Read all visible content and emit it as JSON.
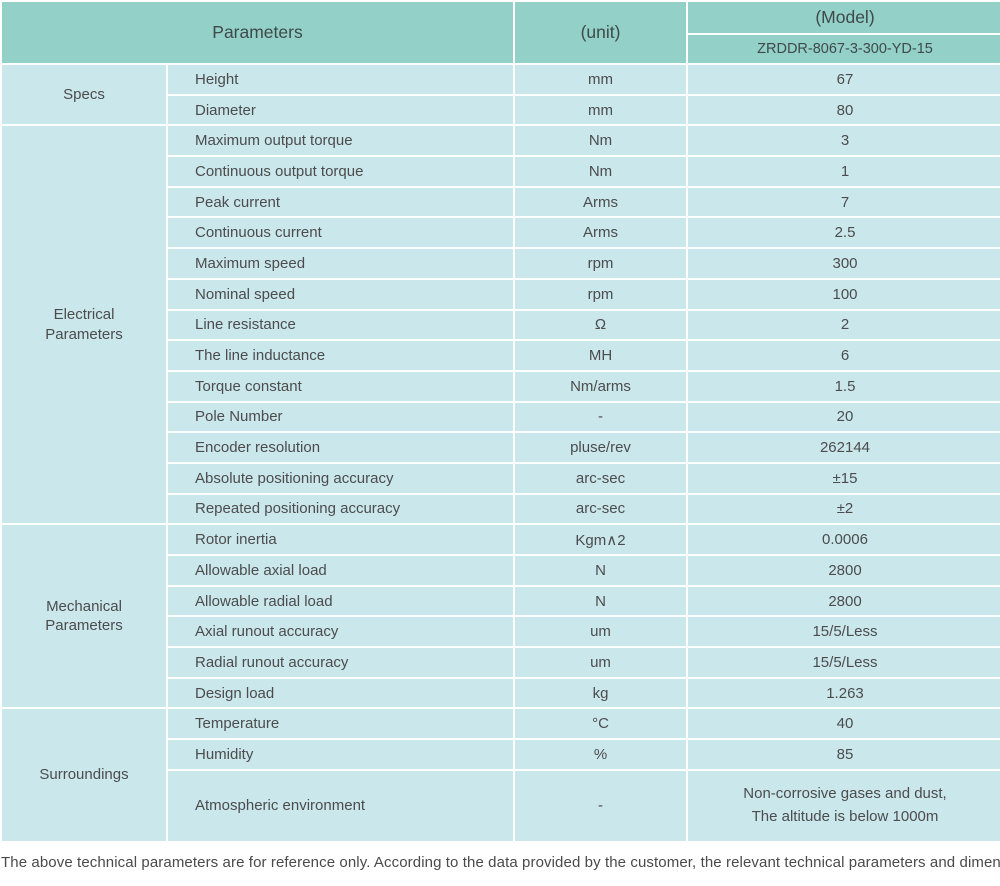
{
  "table": {
    "header": {
      "parameters_label": "Parameters",
      "unit_label": "(unit)",
      "model_label": "(Model)",
      "model_value": "ZRDDR-8067-3-300-YD-15"
    },
    "sections": [
      {
        "group": "Specs",
        "rows": [
          {
            "name": "Height",
            "unit": "mm",
            "value": "67"
          },
          {
            "name": "Diameter",
            "unit": "mm",
            "value": "80"
          }
        ]
      },
      {
        "group": "Electrical Parameters",
        "rows": [
          {
            "name": "Maximum output torque",
            "unit": "Nm",
            "value": "3"
          },
          {
            "name": "Continuous output torque",
            "unit": "Nm",
            "value": "1"
          },
          {
            "name": "Peak current",
            "unit": "Arms",
            "value": "7"
          },
          {
            "name": "Continuous current",
            "unit": "Arms",
            "value": "2.5"
          },
          {
            "name": "Maximum speed",
            "unit": "rpm",
            "value": "300"
          },
          {
            "name": "Nominal speed",
            "unit": "rpm",
            "value": "100"
          },
          {
            "name": "Line resistance",
            "unit": "Ω",
            "value": "2"
          },
          {
            "name": "The line inductance",
            "unit": "MH",
            "value": "6"
          },
          {
            "name": "Torque constant",
            "unit": "Nm/arms",
            "value": "1.5"
          },
          {
            "name": "Pole Number",
            "unit": "-",
            "value": "20"
          },
          {
            "name": "Encoder resolution",
            "unit": "pluse/rev",
            "value": "262144"
          },
          {
            "name": "Absolute positioning accuracy",
            "unit": "arc-sec",
            "value": "±15"
          },
          {
            "name": "Repeated positioning accuracy",
            "unit": "arc-sec",
            "value": "±2"
          }
        ]
      },
      {
        "group": "Mechanical Parameters",
        "rows": [
          {
            "name": "Rotor inertia",
            "unit": "Kgm∧2",
            "value": "0.0006"
          },
          {
            "name": "Allowable axial load",
            "unit": "N",
            "value": "2800"
          },
          {
            "name": "Allowable radial load",
            "unit": "N",
            "value": "2800"
          },
          {
            "name": "Axial runout accuracy",
            "unit": "um",
            "value": "15/5/Less"
          },
          {
            "name": "Radial runout accuracy",
            "unit": "um",
            "value": "15/5/Less"
          },
          {
            "name": "Design load",
            "unit": "kg",
            "value": "1.263"
          }
        ]
      },
      {
        "group": "Surroundings",
        "rows": [
          {
            "name": "Temperature",
            "unit": "°C",
            "value": "40"
          },
          {
            "name": "Humidity",
            "unit": "%",
            "value": "85"
          },
          {
            "name": "Atmospheric environment",
            "unit": "-",
            "value_line1": "Non-corrosive gases and dust,",
            "value_line2": "The altitude is below 1000m"
          }
        ]
      }
    ]
  },
  "footer": {
    "note": "The above technical parameters are for reference only. According to the data provided by the customer, the relevant technical parameters and dimensions will be issued."
  },
  "colors": {
    "header_bg": "#92d0c8",
    "row_bg": "#cae7ec",
    "divider": "#ffffff",
    "text": "#4c4c4c"
  }
}
